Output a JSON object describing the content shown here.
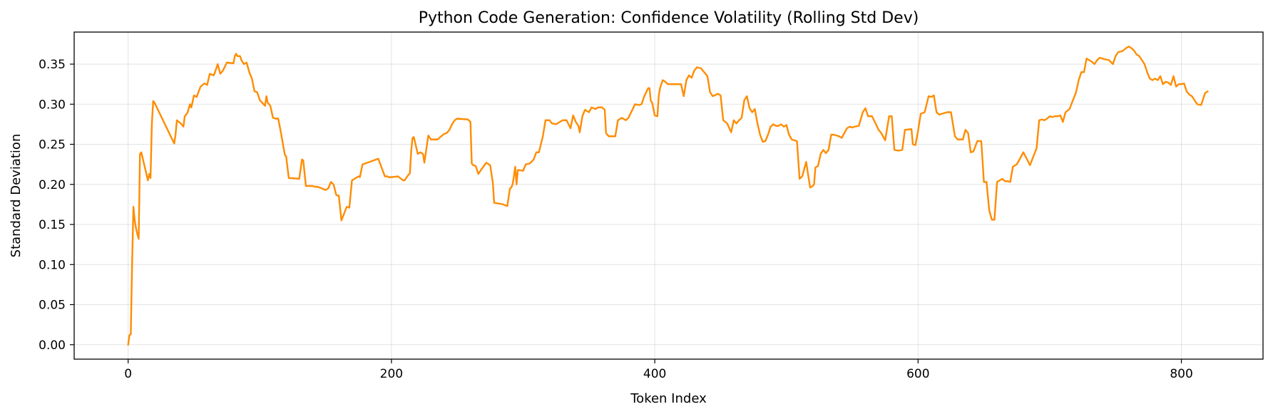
{
  "chart_data": {
    "type": "line",
    "title": "Python Code Generation: Confidence Volatility (Rolling Std Dev)",
    "xlabel": "Token Index",
    "ylabel": "Standard Deviation",
    "xlim": [
      -41,
      862
    ],
    "ylim": [
      -0.018,
      0.39
    ],
    "xticks": [
      0,
      200,
      400,
      600,
      800
    ],
    "yticks": [
      0.0,
      0.05,
      0.1,
      0.15,
      0.2,
      0.25,
      0.3,
      0.35
    ],
    "xtick_labels": [
      "0",
      "200",
      "400",
      "600",
      "800"
    ],
    "ytick_labels": [
      "0.00",
      "0.05",
      "0.10",
      "0.15",
      "0.20",
      "0.25",
      "0.30",
      "0.35"
    ],
    "grid": true,
    "legend": "none",
    "series": [
      {
        "color": "#ff8c00",
        "x": [
          0,
          1,
          2,
          3,
          4,
          5,
          6,
          7,
          8,
          9,
          10,
          15,
          16,
          17,
          18,
          19,
          20,
          35,
          36,
          37,
          40,
          42,
          43,
          45,
          47,
          48,
          50,
          52,
          55,
          58,
          60,
          62,
          65,
          66,
          68,
          70,
          72,
          75,
          80,
          81,
          82,
          83,
          85,
          86,
          88,
          90,
          92,
          94,
          96,
          98,
          100,
          104,
          105,
          106,
          108,
          110,
          112,
          114,
          116,
          119,
          120,
          122,
          130,
          132,
          133,
          135,
          140,
          142,
          144,
          150,
          152,
          154,
          156,
          158,
          159,
          160,
          162,
          166,
          168,
          170,
          175,
          176,
          178,
          180,
          190,
          195,
          197,
          198,
          200,
          205,
          208,
          209,
          210,
          212,
          214,
          215,
          216,
          217,
          220,
          222,
          224,
          225,
          228,
          230,
          235,
          240,
          242,
          244,
          246,
          248,
          250,
          258,
          260,
          261,
          262,
          264,
          266,
          268,
          272,
          275,
          277,
          278,
          282,
          285,
          286,
          288,
          290,
          291,
          292,
          293,
          294,
          295,
          296,
          300,
          302,
          305,
          308,
          310,
          312,
          315,
          317,
          320,
          322,
          325,
          330,
          333,
          336,
          338,
          340,
          342,
          343,
          345,
          347,
          350,
          352,
          355,
          357,
          360,
          362,
          363,
          365,
          370,
          372,
          375,
          378,
          380,
          385,
          388,
          390,
          392,
          395,
          396,
          397,
          398,
          400,
          402,
          403,
          404,
          406,
          408,
          410,
          420,
          422,
          424,
          426,
          428,
          430,
          432,
          435,
          440,
          442,
          444,
          448,
          450,
          452,
          455,
          458,
          460,
          462,
          464,
          466,
          468,
          470,
          472,
          474,
          476,
          478,
          480,
          482,
          484,
          486,
          488,
          490,
          492,
          494,
          496,
          498,
          500,
          502,
          504,
          506,
          508,
          510,
          512,
          515,
          518,
          520,
          521,
          522,
          524,
          526,
          528,
          530,
          532,
          534,
          536,
          540,
          542,
          546,
          548,
          550,
          552,
          555,
          558,
          560,
          562,
          565,
          568,
          570,
          572,
          575,
          578,
          580,
          582,
          585,
          588,
          590,
          595,
          596,
          598,
          600,
          602,
          605,
          608,
          610,
          612,
          614,
          616,
          618,
          620,
          622,
          625,
          628,
          630,
          632,
          634,
          636,
          638,
          640,
          642,
          645,
          648,
          650,
          652,
          654,
          656,
          658,
          660,
          662,
          664,
          666,
          668,
          670,
          672,
          675,
          680,
          685,
          690,
          692,
          694,
          696,
          698,
          700,
          702,
          704,
          706,
          708,
          710,
          712,
          715,
          720,
          722,
          724,
          726,
          728,
          730,
          732,
          734,
          736,
          738,
          740,
          742,
          745,
          748,
          750,
          752,
          755,
          758,
          760,
          762,
          764,
          766,
          768,
          770,
          772,
          774,
          776,
          778,
          780,
          782,
          784,
          786,
          788,
          790,
          792,
          794,
          796,
          798,
          800,
          802,
          804,
          806,
          808,
          810,
          812,
          815,
          818,
          820
        ],
        "y": [
          0.0,
          0.012,
          0.013,
          0.1,
          0.172,
          0.155,
          0.145,
          0.138,
          0.132,
          0.238,
          0.24,
          0.205,
          0.213,
          0.208,
          0.275,
          0.304,
          0.302,
          0.251,
          0.262,
          0.28,
          0.276,
          0.272,
          0.285,
          0.289,
          0.3,
          0.296,
          0.311,
          0.309,
          0.322,
          0.326,
          0.324,
          0.338,
          0.336,
          0.34,
          0.35,
          0.338,
          0.342,
          0.352,
          0.351,
          0.36,
          0.363,
          0.36,
          0.36,
          0.355,
          0.35,
          0.352,
          0.34,
          0.332,
          0.316,
          0.315,
          0.305,
          0.298,
          0.31,
          0.302,
          0.298,
          0.283,
          0.282,
          0.282,
          0.265,
          0.237,
          0.235,
          0.208,
          0.207,
          0.231,
          0.23,
          0.198,
          0.198,
          0.197,
          0.197,
          0.193,
          0.195,
          0.203,
          0.2,
          0.187,
          0.186,
          0.186,
          0.155,
          0.172,
          0.171,
          0.205,
          0.21,
          0.209,
          0.225,
          0.226,
          0.232,
          0.21,
          0.21,
          0.209,
          0.209,
          0.21,
          0.206,
          0.205,
          0.205,
          0.21,
          0.214,
          0.242,
          0.258,
          0.259,
          0.238,
          0.24,
          0.238,
          0.227,
          0.261,
          0.256,
          0.256,
          0.263,
          0.264,
          0.268,
          0.275,
          0.28,
          0.282,
          0.281,
          0.278,
          0.226,
          0.224,
          0.223,
          0.213,
          0.218,
          0.227,
          0.224,
          0.202,
          0.177,
          0.176,
          0.175,
          0.174,
          0.173,
          0.195,
          0.196,
          0.2,
          0.21,
          0.222,
          0.2,
          0.218,
          0.217,
          0.225,
          0.226,
          0.231,
          0.24,
          0.24,
          0.26,
          0.28,
          0.28,
          0.276,
          0.275,
          0.28,
          0.28,
          0.27,
          0.286,
          0.278,
          0.273,
          0.265,
          0.285,
          0.293,
          0.29,
          0.296,
          0.294,
          0.296,
          0.296,
          0.293,
          0.264,
          0.26,
          0.26,
          0.28,
          0.283,
          0.28,
          0.283,
          0.3,
          0.299,
          0.3,
          0.31,
          0.32,
          0.32,
          0.304,
          0.302,
          0.286,
          0.285,
          0.31,
          0.32,
          0.33,
          0.328,
          0.325,
          0.325,
          0.31,
          0.33,
          0.336,
          0.333,
          0.342,
          0.346,
          0.345,
          0.335,
          0.315,
          0.31,
          0.313,
          0.311,
          0.28,
          0.276,
          0.265,
          0.28,
          0.276,
          0.28,
          0.283,
          0.305,
          0.31,
          0.295,
          0.29,
          0.294,
          0.276,
          0.262,
          0.253,
          0.254,
          0.262,
          0.272,
          0.275,
          0.273,
          0.273,
          0.275,
          0.272,
          0.274,
          0.262,
          0.256,
          0.255,
          0.254,
          0.207,
          0.21,
          0.228,
          0.196,
          0.198,
          0.2,
          0.221,
          0.223,
          0.238,
          0.243,
          0.239,
          0.243,
          0.262,
          0.262,
          0.26,
          0.258,
          0.27,
          0.272,
          0.271,
          0.272,
          0.273,
          0.29,
          0.295,
          0.285,
          0.285,
          0.275,
          0.268,
          0.264,
          0.255,
          0.285,
          0.285,
          0.243,
          0.242,
          0.243,
          0.268,
          0.269,
          0.25,
          0.249,
          0.267,
          0.288,
          0.29,
          0.31,
          0.309,
          0.311,
          0.29,
          0.287,
          0.288,
          0.289,
          0.29,
          0.29,
          0.26,
          0.256,
          0.256,
          0.256,
          0.268,
          0.264,
          0.24,
          0.241,
          0.254,
          0.254,
          0.203,
          0.203,
          0.168,
          0.156,
          0.156,
          0.203,
          0.205,
          0.207,
          0.204,
          0.204,
          0.203,
          0.222,
          0.225,
          0.24,
          0.224,
          0.245,
          0.28,
          0.281,
          0.28,
          0.282,
          0.285,
          0.284,
          0.285,
          0.285,
          0.286,
          0.278,
          0.29,
          0.294,
          0.315,
          0.33,
          0.34,
          0.34,
          0.357,
          0.355,
          0.353,
          0.35,
          0.355,
          0.358,
          0.357,
          0.356,
          0.355,
          0.35,
          0.36,
          0.365,
          0.366,
          0.37,
          0.372,
          0.37,
          0.367,
          0.362,
          0.36,
          0.355,
          0.35,
          0.34,
          0.332,
          0.33,
          0.332,
          0.33,
          0.335,
          0.325,
          0.328,
          0.327,
          0.324,
          0.335,
          0.322,
          0.325,
          0.325,
          0.326,
          0.316,
          0.312,
          0.31,
          0.305,
          0.3,
          0.299,
          0.314,
          0.316
        ]
      }
    ]
  }
}
